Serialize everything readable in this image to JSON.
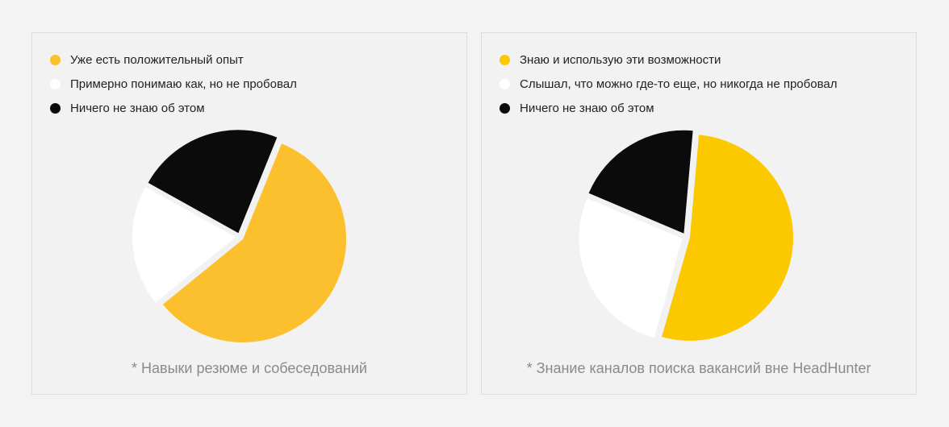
{
  "chart_data": [
    {
      "type": "pie",
      "caption": "* Навыки резюме и собеседований",
      "slices": [
        {
          "label": "Уже есть положительный опыт",
          "value": 58,
          "color": "#fcbf2d"
        },
        {
          "label": "Примерно понимаю как, но не пробовал",
          "value": 19,
          "color": "#ffffff"
        },
        {
          "label": "Ничего не знаю об этом",
          "value": 23,
          "color": "#0b0b0b"
        }
      ]
    },
    {
      "type": "pie",
      "caption": "* Знание каналов поиска вакансий вне HeadHunter",
      "slices": [
        {
          "label": "Знаю и использую эти возможности",
          "value": 53,
          "color": "#fcc800"
        },
        {
          "label": "Слышал, что можно где-то еще, но никогда не пробовал",
          "value": 27,
          "color": "#ffffff"
        },
        {
          "label": "Ничего не знаю об этом",
          "value": 20,
          "color": "#0b0b0b"
        }
      ]
    }
  ]
}
